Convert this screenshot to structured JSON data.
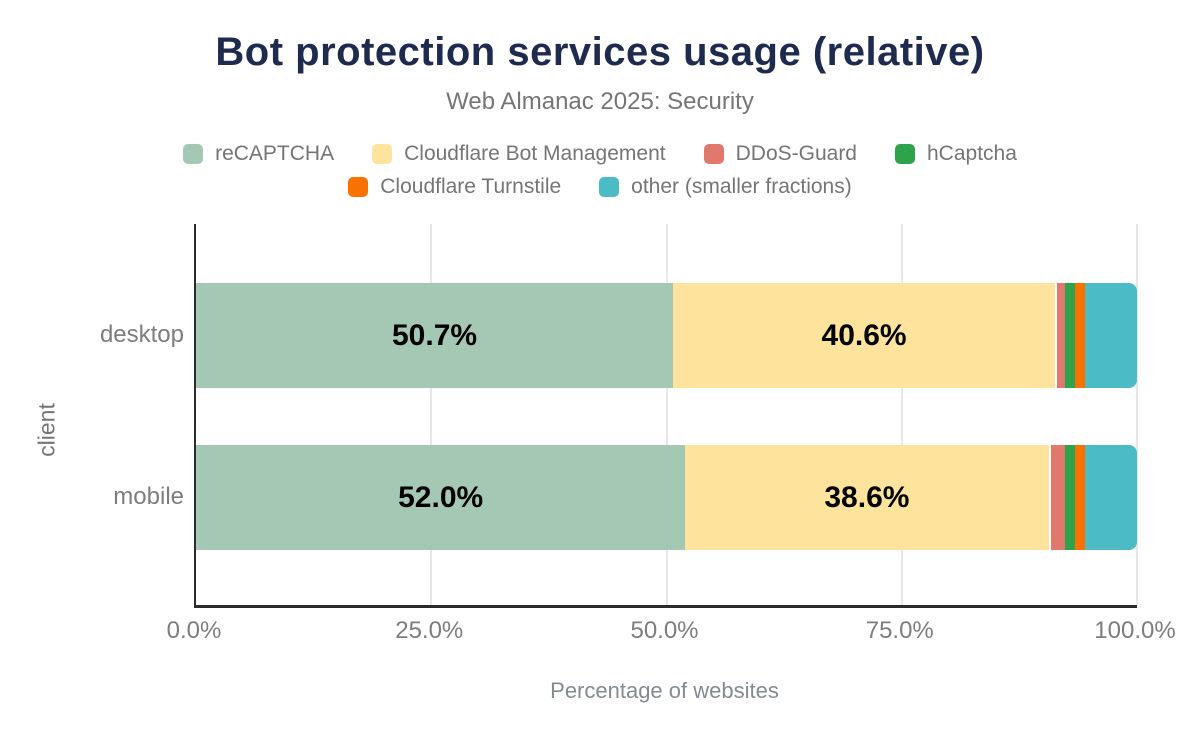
{
  "chart_data": {
    "type": "bar",
    "stacked": true,
    "orientation": "horizontal",
    "title": "Bot protection services usage (relative)",
    "subtitle": "Web Almanac 2025: Security",
    "xlabel": "Percentage of websites",
    "ylabel": "client",
    "categories": [
      "desktop",
      "mobile"
    ],
    "series": [
      {
        "name": "reCAPTCHA",
        "color": "#a5c8b5",
        "values": [
          50.7,
          52.0
        ]
      },
      {
        "name": "Cloudflare Bot Management",
        "color": "#fde39c",
        "values": [
          40.6,
          38.6
        ]
      },
      {
        "name": "DDoS-Guard",
        "color": "#e1786d",
        "values": [
          1.0,
          1.8
        ]
      },
      {
        "name": "hCaptcha",
        "color": "#2fa24c",
        "values": [
          1.1,
          1.0
        ]
      },
      {
        "name": "Cloudflare Turnstile",
        "color": "#f97100",
        "values": [
          1.1,
          1.1
        ]
      },
      {
        "name": "other (smaller fractions)",
        "color": "#4bbcc5",
        "values": [
          5.5,
          5.5
        ]
      }
    ],
    "bar_labels": [
      [
        "50.7%",
        "40.6%",
        "",
        "",
        "",
        ""
      ],
      [
        "52.0%",
        "38.6%",
        "",
        "",
        "",
        ""
      ]
    ],
    "x_ticks": [
      "0.0%",
      "25.0%",
      "50.0%",
      "75.0%",
      "100.0%"
    ],
    "x_tick_positions": [
      0,
      25,
      50,
      75,
      100
    ],
    "xlim": [
      0,
      100
    ],
    "grid": true,
    "legend_position": "top",
    "legend_rows": [
      4,
      2
    ]
  },
  "layout_colors": {
    "title": "#1e2b4e",
    "subtitle": "#757575",
    "axis_text": "#7d7d7d",
    "axis_line": "#2b2b2b",
    "gridline": "#e7e7e7",
    "bar_label": "#000000"
  }
}
